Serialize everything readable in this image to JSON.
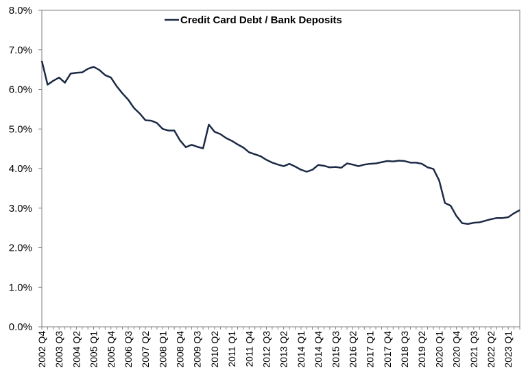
{
  "chart_data": {
    "type": "line",
    "title": "",
    "xlabel": "",
    "ylabel": "",
    "ylim": [
      0,
      0.08
    ],
    "y_ticks": [
      0,
      0.01,
      0.02,
      0.03,
      0.04,
      0.05,
      0.06,
      0.07,
      0.08
    ],
    "y_tick_labels": [
      "0.0%",
      "1.0%",
      "2.0%",
      "3.0%",
      "4.0%",
      "5.0%",
      "6.0%",
      "7.0%",
      "8.0%"
    ],
    "x_tick_labels": [
      "2002 Q4",
      "2003 Q3",
      "2004 Q2",
      "2005 Q1",
      "2005 Q4",
      "2006 Q3",
      "2007 Q2",
      "2008 Q1",
      "2008 Q4",
      "2009 Q3",
      "2010 Q2",
      "2011 Q1",
      "2011 Q4",
      "2012 Q3",
      "2013 Q2",
      "2014 Q1",
      "2014 Q4",
      "2015 Q3",
      "2016 Q2",
      "2017 Q1",
      "2017 Q4",
      "2018 Q3",
      "2019 Q2",
      "2020 Q1",
      "2020 Q4",
      "2021 Q3",
      "2022 Q2",
      "2023 Q1"
    ],
    "x_tick_every": 3,
    "grid": false,
    "legend_position": "top-center",
    "series": [
      {
        "name": "Credit Card Debt / Bank Deposits",
        "color": "#1b2a45",
        "values": [
          0.0672,
          0.0612,
          0.0622,
          0.063,
          0.0617,
          0.064,
          0.0642,
          0.0643,
          0.0652,
          0.0657,
          0.0649,
          0.0636,
          0.063,
          0.0608,
          0.059,
          0.0574,
          0.0553,
          0.0539,
          0.0522,
          0.0521,
          0.0515,
          0.05,
          0.0496,
          0.0496,
          0.0471,
          0.0454,
          0.046,
          0.0455,
          0.0451,
          0.0511,
          0.0493,
          0.0487,
          0.0477,
          0.047,
          0.0461,
          0.0453,
          0.0441,
          0.0436,
          0.0431,
          0.0422,
          0.0415,
          0.041,
          0.0406,
          0.0412,
          0.0405,
          0.0397,
          0.0392,
          0.0397,
          0.0409,
          0.0407,
          0.0403,
          0.0404,
          0.0402,
          0.0413,
          0.041,
          0.0406,
          0.041,
          0.0412,
          0.0413,
          0.0416,
          0.0419,
          0.0418,
          0.042,
          0.0419,
          0.0415,
          0.0415,
          0.0412,
          0.0403,
          0.0399,
          0.037,
          0.0313,
          0.0306,
          0.028,
          0.0262,
          0.026,
          0.0263,
          0.0264,
          0.0268,
          0.0272,
          0.0275,
          0.0275,
          0.0277,
          0.0287,
          0.0295
        ]
      }
    ]
  }
}
